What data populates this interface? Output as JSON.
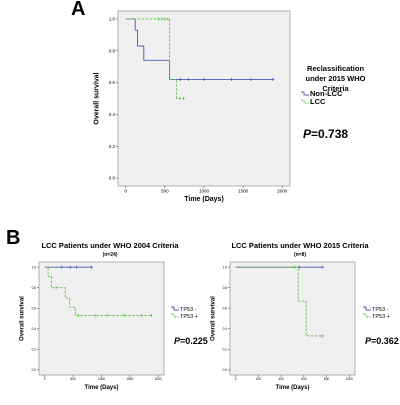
{
  "panels": {
    "a_letter": "A",
    "b_letter": "B"
  },
  "colors": {
    "series1": "#4a5ba8",
    "series2": "#5cbf4a",
    "plot_bg": "#f0f0f0",
    "frame": "#808080"
  },
  "chart_a_text": {
    "legend_title_1": "Reclassification",
    "legend_title_2": "under 2015 WHO",
    "legend_title_3": "Criteria",
    "pval_label": "P",
    "pval_value": "=0.738"
  },
  "chart_b1_text": {
    "pval_label": "P",
    "pval_value": "=0.225"
  },
  "chart_b2_text": {
    "pval_label": "P",
    "pval_value": "=0.362"
  },
  "chart_data": [
    {
      "type": "line",
      "title": "",
      "xlabel": "Time (Days)",
      "ylabel": "Overall survival",
      "xlim": [
        -100,
        2100
      ],
      "ylim": [
        -0.05,
        1.05
      ],
      "xticks": [
        "0",
        "500",
        "1000",
        "1500",
        "2000"
      ],
      "xtick_values": [
        0,
        500,
        1000,
        1500,
        2000
      ],
      "yticks": [
        "0.0",
        "0.2",
        "0.4",
        "0.6",
        "0.8",
        "1.0"
      ],
      "ytick_values": [
        0,
        0.2,
        0.4,
        0.6,
        0.8,
        1.0
      ],
      "legend_placement": "right",
      "series": [
        {
          "name": "Non-LCC",
          "style": "solid",
          "steps": [
            [
              0,
              1.0
            ],
            [
              120,
              1.0
            ],
            [
              120,
              0.93
            ],
            [
              150,
              0.93
            ],
            [
              150,
              0.83
            ],
            [
              230,
              0.83
            ],
            [
              230,
              0.74
            ],
            [
              560,
              0.74
            ],
            [
              560,
              0.62
            ],
            [
              1900,
              0.62
            ]
          ],
          "censors": [
            [
              700,
              0.62
            ],
            [
              800,
              0.62
            ],
            [
              1000,
              0.62
            ],
            [
              1350,
              0.62
            ],
            [
              1600,
              0.62
            ],
            [
              1880,
              0.62
            ]
          ]
        },
        {
          "name": "LCC",
          "style": "dashed",
          "steps": [
            [
              0,
              1.0
            ],
            [
              560,
              1.0
            ],
            [
              560,
              0.62
            ],
            [
              650,
              0.62
            ],
            [
              650,
              0.5
            ],
            [
              750,
              0.5
            ]
          ],
          "censors": [
            [
              420,
              1.0
            ],
            [
              460,
              1.0
            ],
            [
              500,
              1.0
            ],
            [
              540,
              1.0
            ],
            [
              690,
              0.5
            ],
            [
              740,
              0.5
            ]
          ]
        }
      ]
    },
    {
      "type": "line",
      "title": "LCC Patients under WHO 2004 Criteria",
      "subtitle": "(n=24)",
      "xlabel": "Time (Days)",
      "ylabel": "Overall survival",
      "xlim": [
        -100,
        2100
      ],
      "ylim": [
        -0.05,
        1.05
      ],
      "xticks": [
        "0",
        "500",
        "1000",
        "1500",
        "2000"
      ],
      "xtick_values": [
        0,
        500,
        1000,
        1500,
        2000
      ],
      "yticks": [
        "0.0",
        "0.2",
        "0.4",
        "0.6",
        "0.8",
        "1.0"
      ],
      "ytick_values": [
        0,
        0.2,
        0.4,
        0.6,
        0.8,
        1.0
      ],
      "legend_placement": "right",
      "series": [
        {
          "name": "TP53 -",
          "style": "solid",
          "steps": [
            [
              0,
              1.0
            ],
            [
              850,
              1.0
            ]
          ],
          "censors": [
            [
              300,
              1.0
            ],
            [
              450,
              1.0
            ],
            [
              560,
              1.0
            ],
            [
              820,
              1.0
            ]
          ]
        },
        {
          "name": "TP53 +",
          "style": "dashed",
          "steps": [
            [
              0,
              1.0
            ],
            [
              60,
              1.0
            ],
            [
              60,
              0.91
            ],
            [
              120,
              0.91
            ],
            [
              120,
              0.8
            ],
            [
              360,
              0.8
            ],
            [
              360,
              0.7
            ],
            [
              440,
              0.7
            ],
            [
              440,
              0.61
            ],
            [
              540,
              0.61
            ],
            [
              540,
              0.53
            ],
            [
              1900,
              0.53
            ]
          ],
          "censors": [
            [
              200,
              0.8
            ],
            [
              600,
              0.53
            ],
            [
              900,
              0.53
            ],
            [
              1100,
              0.53
            ],
            [
              1400,
              0.53
            ],
            [
              1700,
              0.53
            ],
            [
              1880,
              0.53
            ]
          ]
        }
      ]
    },
    {
      "type": "line",
      "title": "LCC Patients under WHO 2015 Criteria",
      "subtitle": "(n=8)",
      "xlabel": "Time (Days)",
      "ylabel": "Overall survival",
      "xlim": [
        -50,
        1050
      ],
      "ylim": [
        -0.05,
        1.05
      ],
      "xticks": [
        "0",
        "200",
        "400",
        "600",
        "800",
        "1000"
      ],
      "xtick_values": [
        0,
        200,
        400,
        600,
        800,
        1000
      ],
      "yticks": [
        "0.0",
        "0.2",
        "0.4",
        "0.6",
        "0.8",
        "1.0"
      ],
      "ytick_values": [
        0,
        0.2,
        0.4,
        0.6,
        0.8,
        1.0
      ],
      "legend_placement": "right",
      "series": [
        {
          "name": "TP53 -",
          "style": "solid",
          "steps": [
            [
              0,
              1.0
            ],
            [
              780,
              1.0
            ]
          ],
          "censors": [
            [
              560,
              1.0
            ],
            [
              760,
              1.0
            ]
          ]
        },
        {
          "name": "TP53 +",
          "style": "dashed",
          "steps": [
            [
              0,
              1.0
            ],
            [
              550,
              1.0
            ],
            [
              550,
              0.67
            ],
            [
              620,
              0.67
            ],
            [
              620,
              0.33
            ],
            [
              780,
              0.33
            ]
          ],
          "censors": [
            [
              520,
              1.0
            ],
            [
              760,
              0.33
            ]
          ]
        }
      ]
    }
  ]
}
